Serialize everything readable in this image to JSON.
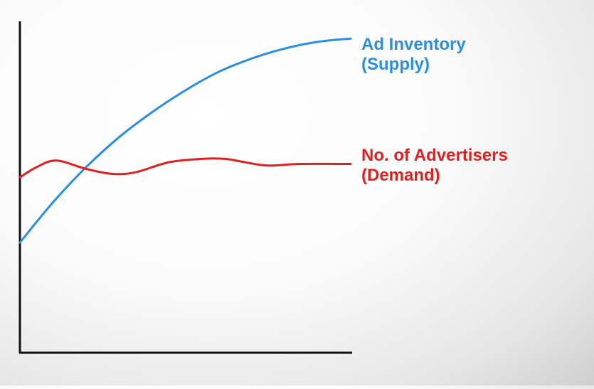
{
  "chart_data": {
    "type": "line",
    "title": "",
    "xlabel": "",
    "ylabel": "",
    "axes": {
      "x_ticks": false,
      "y_ticks": false,
      "grid": false
    },
    "legend": "inline-right-of-lines",
    "xlim": [
      0,
      100
    ],
    "ylim": [
      0,
      100
    ],
    "series": [
      {
        "name_line1": "Ad Inventory",
        "name_line2": "(Supply)",
        "color": "#2a8fe0",
        "x": [
          0,
          10,
          20,
          30,
          40,
          50,
          60,
          70,
          80,
          90,
          100
        ],
        "y": [
          33,
          45,
          55.5,
          64.5,
          72,
          78.5,
          84,
          88,
          91,
          93,
          94
        ]
      },
      {
        "name_line1": "No. of Advertisers",
        "name_line2": "(Demand)",
        "color": "#e0201e",
        "x": [
          0,
          5,
          11,
          20,
          28,
          35,
          45,
          55,
          62,
          68,
          75,
          85,
          100
        ],
        "y": [
          52.5,
          55.5,
          57.5,
          55,
          53.5,
          54,
          57,
          58,
          58,
          57,
          56,
          56.5,
          56.5
        ]
      }
    ]
  }
}
